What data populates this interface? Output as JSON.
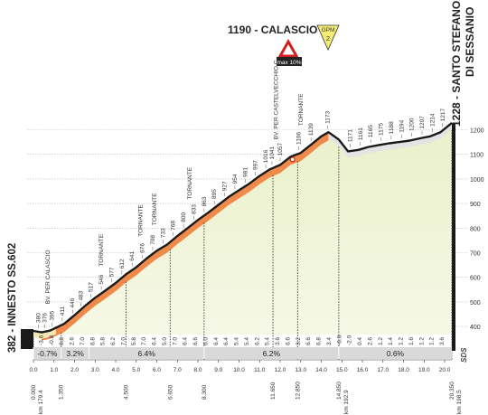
{
  "chart_data": {
    "type": "area",
    "title": "",
    "xlabel": "",
    "ylabel": "",
    "ylim": [
      300,
      1250
    ],
    "xlim": [
      0,
      20.35
    ],
    "y_ticks": [
      400,
      500,
      600,
      700,
      800,
      900,
      1000,
      1100,
      1200
    ],
    "x_ticks": [
      "0.0",
      "1.0",
      "2.0",
      "3.0",
      "4.0",
      "5.0",
      "6.0",
      "7.0",
      "8.0",
      "9.0",
      "10.0",
      "11.0",
      "12.0",
      "13.0",
      "14.0",
      "15.0",
      "16.0",
      "17.0",
      "18.0",
      "19.0",
      "20.0"
    ],
    "profile": {
      "x": [
        0,
        0.4,
        0.8,
        1.1,
        1.5,
        2.0,
        2.5,
        3.0,
        3.5,
        4.0,
        4.5,
        5.0,
        5.5,
        6.0,
        6.5,
        7.0,
        7.5,
        8.0,
        8.5,
        9.0,
        9.5,
        10.0,
        10.5,
        11.0,
        11.5,
        12.0,
        12.5,
        13.0,
        13.5,
        14.0,
        14.35,
        14.85,
        15.3,
        15.8,
        16.3,
        16.8,
        17.3,
        17.8,
        18.3,
        18.8,
        19.3,
        19.8,
        20.35
      ],
      "y": [
        382,
        376,
        383,
        395,
        411,
        446,
        483,
        517,
        546,
        577,
        612,
        641,
        676,
        708,
        733,
        768,
        800,
        833,
        863,
        895,
        927,
        954,
        981,
        1012,
        1039,
        1057,
        1090,
        1106,
        1139,
        1173,
        1190,
        1160,
        1112,
        1118,
        1130,
        1138,
        1145,
        1150,
        1156,
        1165,
        1173,
        1190,
        1228
      ]
    },
    "km_left": [
      "0.000",
      "1.350",
      "4.500",
      "6.650",
      "8.300",
      "11.650",
      "12.850",
      "14.850"
    ],
    "km_left_x": [
      0,
      1.35,
      4.5,
      6.65,
      8.3,
      11.65,
      12.85,
      14.85
    ],
    "km_right": [
      "km 198.5",
      "km 192.9",
      "km 179.4"
    ],
    "km_right_detail": [
      "20.350",
      "km 198.5"
    ],
    "km_markers": [
      {
        "label": "0.000",
        "sub": "km 179.4",
        "x": 0
      },
      {
        "label": "1.350",
        "x": 1.35
      },
      {
        "label": "4.500",
        "x": 4.5
      },
      {
        "label": "6.650",
        "x": 6.65
      },
      {
        "label": "8.300",
        "x": 8.3
      },
      {
        "label": "11.650",
        "x": 11.65
      },
      {
        "label": "12.850",
        "x": 12.85
      },
      {
        "label": "14.850",
        "sub": "km 192.9",
        "x": 14.85
      },
      {
        "label": "20.350",
        "sub": "km 198.5",
        "x": 20.35
      }
    ],
    "gradients_per_km": [
      {
        "x": 0.5,
        "v": "-3.6"
      },
      {
        "x": 1.0,
        "v": "-0.8"
      },
      {
        "x": 1.5,
        "v": "0.8"
      },
      {
        "x": 2.0,
        "v": "2.6"
      },
      {
        "x": 2.5,
        "v": "7.0"
      },
      {
        "x": 3.0,
        "v": "6.8"
      },
      {
        "x": 3.5,
        "v": "5.8"
      },
      {
        "x": 4.0,
        "v": "6.2"
      },
      {
        "x": 4.5,
        "v": "7.0"
      },
      {
        "x": 5.0,
        "v": "5.8"
      },
      {
        "x": 5.5,
        "v": "7.0"
      },
      {
        "x": 6.0,
        "v": "6.4"
      },
      {
        "x": 6.5,
        "v": "5.0"
      },
      {
        "x": 7.0,
        "v": "7.0"
      },
      {
        "x": 7.5,
        "v": "6.4"
      },
      {
        "x": 8.0,
        "v": "6.6"
      },
      {
        "x": 8.5,
        "v": "6.0"
      },
      {
        "x": 9.0,
        "v": "6.4"
      },
      {
        "x": 9.5,
        "v": "6.4"
      },
      {
        "x": 10.0,
        "v": "5.4"
      },
      {
        "x": 10.5,
        "v": "5.4"
      },
      {
        "x": 11.0,
        "v": "6.2"
      },
      {
        "x": 11.5,
        "v": "5.4"
      },
      {
        "x": 12.0,
        "v": "3.6"
      },
      {
        "x": 12.5,
        "v": "6.6"
      },
      {
        "x": 13.0,
        "v": "3.2"
      },
      {
        "x": 13.5,
        "v": "6.6"
      },
      {
        "x": 14.0,
        "v": "6.8"
      },
      {
        "x": 14.5,
        "v": "3.4"
      },
      {
        "x": 15.0,
        "v": "-6.0"
      },
      {
        "x": 15.5,
        "v": "-2.0"
      },
      {
        "x": 16.0,
        "v": "0.4"
      },
      {
        "x": 16.5,
        "v": "2.6"
      },
      {
        "x": 17.0,
        "v": "1.2"
      },
      {
        "x": 17.5,
        "v": "1.4"
      },
      {
        "x": 18.0,
        "v": "1.2"
      },
      {
        "x": 18.5,
        "v": "1.6"
      },
      {
        "x": 19.0,
        "v": "1.2"
      },
      {
        "x": 19.5,
        "v": "1.2"
      },
      {
        "x": 20.0,
        "v": "3.6"
      }
    ],
    "sector_gradients": [
      {
        "from": 0,
        "to": 1.35,
        "label": "-0.7%"
      },
      {
        "from": 1.35,
        "to": 2.7,
        "label": "3.2%"
      },
      {
        "from": 2.7,
        "to": 8.3,
        "label": "6.4%"
      },
      {
        "from": 8.3,
        "to": 14.85,
        "label": "6.2%"
      },
      {
        "from": 14.85,
        "to": 20.35,
        "label": "0.6%"
      }
    ],
    "altitude_labels": [
      {
        "x": 0.25,
        "v": "380"
      },
      {
        "x": 0.55,
        "v": "376"
      },
      {
        "x": 0.9,
        "v": "395"
      },
      {
        "x": 1.4,
        "v": "411"
      },
      {
        "x": 1.9,
        "v": "446"
      },
      {
        "x": 2.3,
        "v": "483"
      },
      {
        "x": 2.8,
        "v": "517"
      },
      {
        "x": 3.3,
        "v": "546"
      },
      {
        "x": 3.8,
        "v": "577"
      },
      {
        "x": 4.3,
        "v": "612"
      },
      {
        "x": 4.8,
        "v": "641"
      },
      {
        "x": 5.3,
        "v": "676"
      },
      {
        "x": 5.8,
        "v": "708"
      },
      {
        "x": 6.3,
        "v": "733"
      },
      {
        "x": 6.8,
        "v": "768"
      },
      {
        "x": 7.3,
        "v": "800"
      },
      {
        "x": 7.8,
        "v": "833"
      },
      {
        "x": 8.3,
        "v": "863"
      },
      {
        "x": 8.8,
        "v": "895"
      },
      {
        "x": 9.3,
        "v": "927"
      },
      {
        "x": 9.8,
        "v": "954"
      },
      {
        "x": 10.3,
        "v": "981"
      },
      {
        "x": 10.8,
        "v": "997"
      },
      {
        "x": 11.3,
        "v": "1016"
      },
      {
        "x": 11.6,
        "v": "1041"
      },
      {
        "x": 12.0,
        "v": "1057"
      },
      {
        "x": 12.9,
        "v": "1106"
      },
      {
        "x": 13.5,
        "v": "1139"
      },
      {
        "x": 14.3,
        "v": "1173"
      },
      {
        "x": 15.4,
        "v": "1171"
      },
      {
        "x": 15.9,
        "v": "1161"
      },
      {
        "x": 16.4,
        "v": "1165"
      },
      {
        "x": 16.9,
        "v": "1175"
      },
      {
        "x": 17.4,
        "v": "1188"
      },
      {
        "x": 17.9,
        "v": "1194"
      },
      {
        "x": 18.4,
        "v": "1200"
      },
      {
        "x": 18.9,
        "v": "1207"
      },
      {
        "x": 19.4,
        "v": "1214"
      },
      {
        "x": 19.9,
        "v": "1217"
      }
    ],
    "place_labels": [
      {
        "x": 0.7,
        "text": "BV. PER CALASCIO"
      },
      {
        "x": 3.3,
        "text": "TORNANTE"
      },
      {
        "x": 5.2,
        "text": "TORNANTE"
      },
      {
        "x": 5.9,
        "text": "TORNANTE"
      },
      {
        "x": 7.6,
        "text": "TORNANTE"
      },
      {
        "x": 11.8,
        "text": "BV. PER CASTELVECCHIO C."
      },
      {
        "x": 13.0,
        "text": "TORNANTE"
      }
    ],
    "start_label": "382 - INNESTO SS.602",
    "summit_label": "1190 - CALASCIO",
    "finish_label_1": "1228 - SANTO STEFANO",
    "finish_label_2": "DI SESSANIO",
    "gpm_badge": "GPM",
    "gpm_category": "2",
    "max_gradient": "max 10%",
    "sds_logo": "SDS"
  }
}
